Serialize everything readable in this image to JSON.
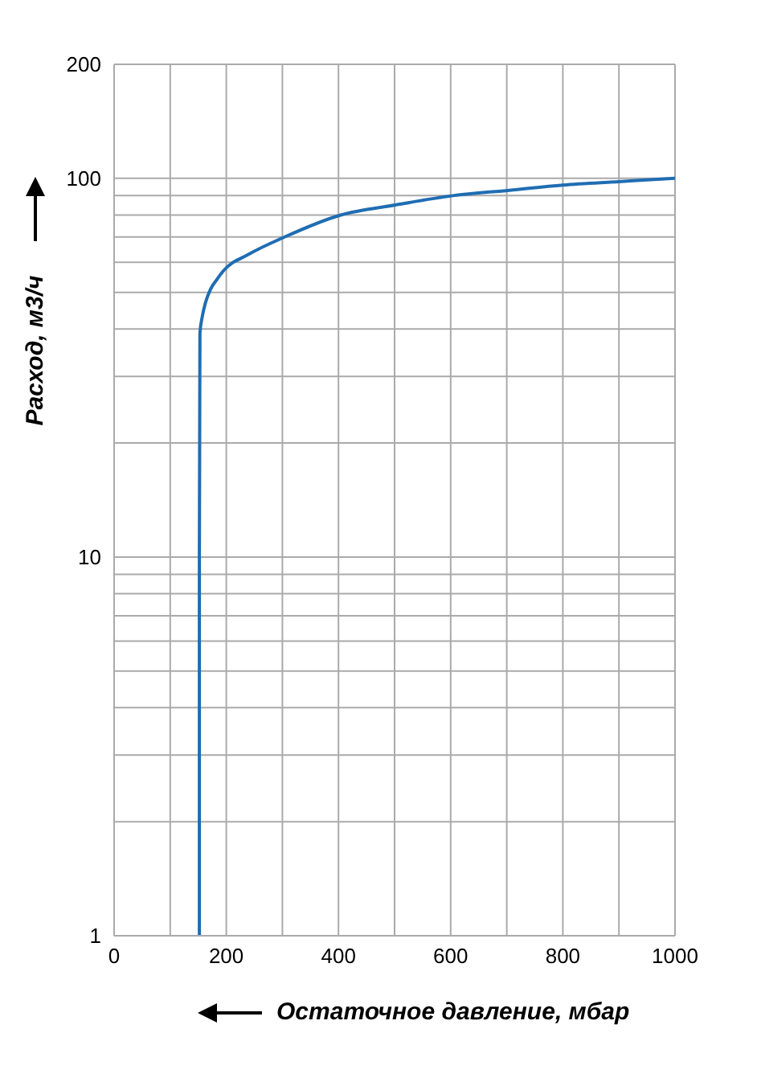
{
  "chart_data": {
    "type": "line",
    "xlabel": "Остаточное давление, мбар",
    "ylabel": "Расход, м3/ч",
    "x": [
      152,
      152,
      153,
      157,
      163,
      172,
      183,
      195,
      240,
      304,
      404,
      501,
      604,
      705,
      800,
      900,
      1000
    ],
    "series": [
      {
        "color": "#1f6db3",
        "values": [
          1,
          10,
          39,
          43,
          47,
          51,
          54,
          57,
          63,
          70,
          80,
          85,
          90,
          93,
          96,
          98,
          100
        ]
      }
    ],
    "xlim": [
      0,
      1000
    ],
    "xticks": [
      0,
      {
        "value": 100,
        "label": null
      },
      200,
      {
        "value": 300,
        "label": null
      },
      400,
      {
        "value": 500,
        "label": null
      },
      600,
      {
        "value": 700,
        "label": null
      },
      800,
      {
        "value": 900,
        "label": null
      },
      1000
    ],
    "ylim": [
      1,
      200
    ],
    "yticks": [
      1,
      {
        "value": 2,
        "label": null
      },
      {
        "value": 3,
        "label": null
      },
      {
        "value": 4,
        "label": null
      },
      {
        "value": 5,
        "label": null
      },
      {
        "value": 6,
        "label": null
      },
      {
        "value": 7,
        "label": null
      },
      {
        "value": 8,
        "label": null
      },
      {
        "value": 9,
        "label": null
      },
      10,
      {
        "value": 20,
        "label": null
      },
      {
        "value": 30,
        "label": null
      },
      {
        "value": 40,
        "label": null
      },
      {
        "value": 50,
        "label": null
      },
      {
        "value": 60,
        "label": null
      },
      {
        "value": 70,
        "label": null
      },
      {
        "value": 80,
        "label": null
      },
      {
        "value": 90,
        "label": null
      },
      100,
      200
    ],
    "log": "y",
    "grid": true,
    "legend": false,
    "marker": "none",
    "line_style": "solid"
  }
}
